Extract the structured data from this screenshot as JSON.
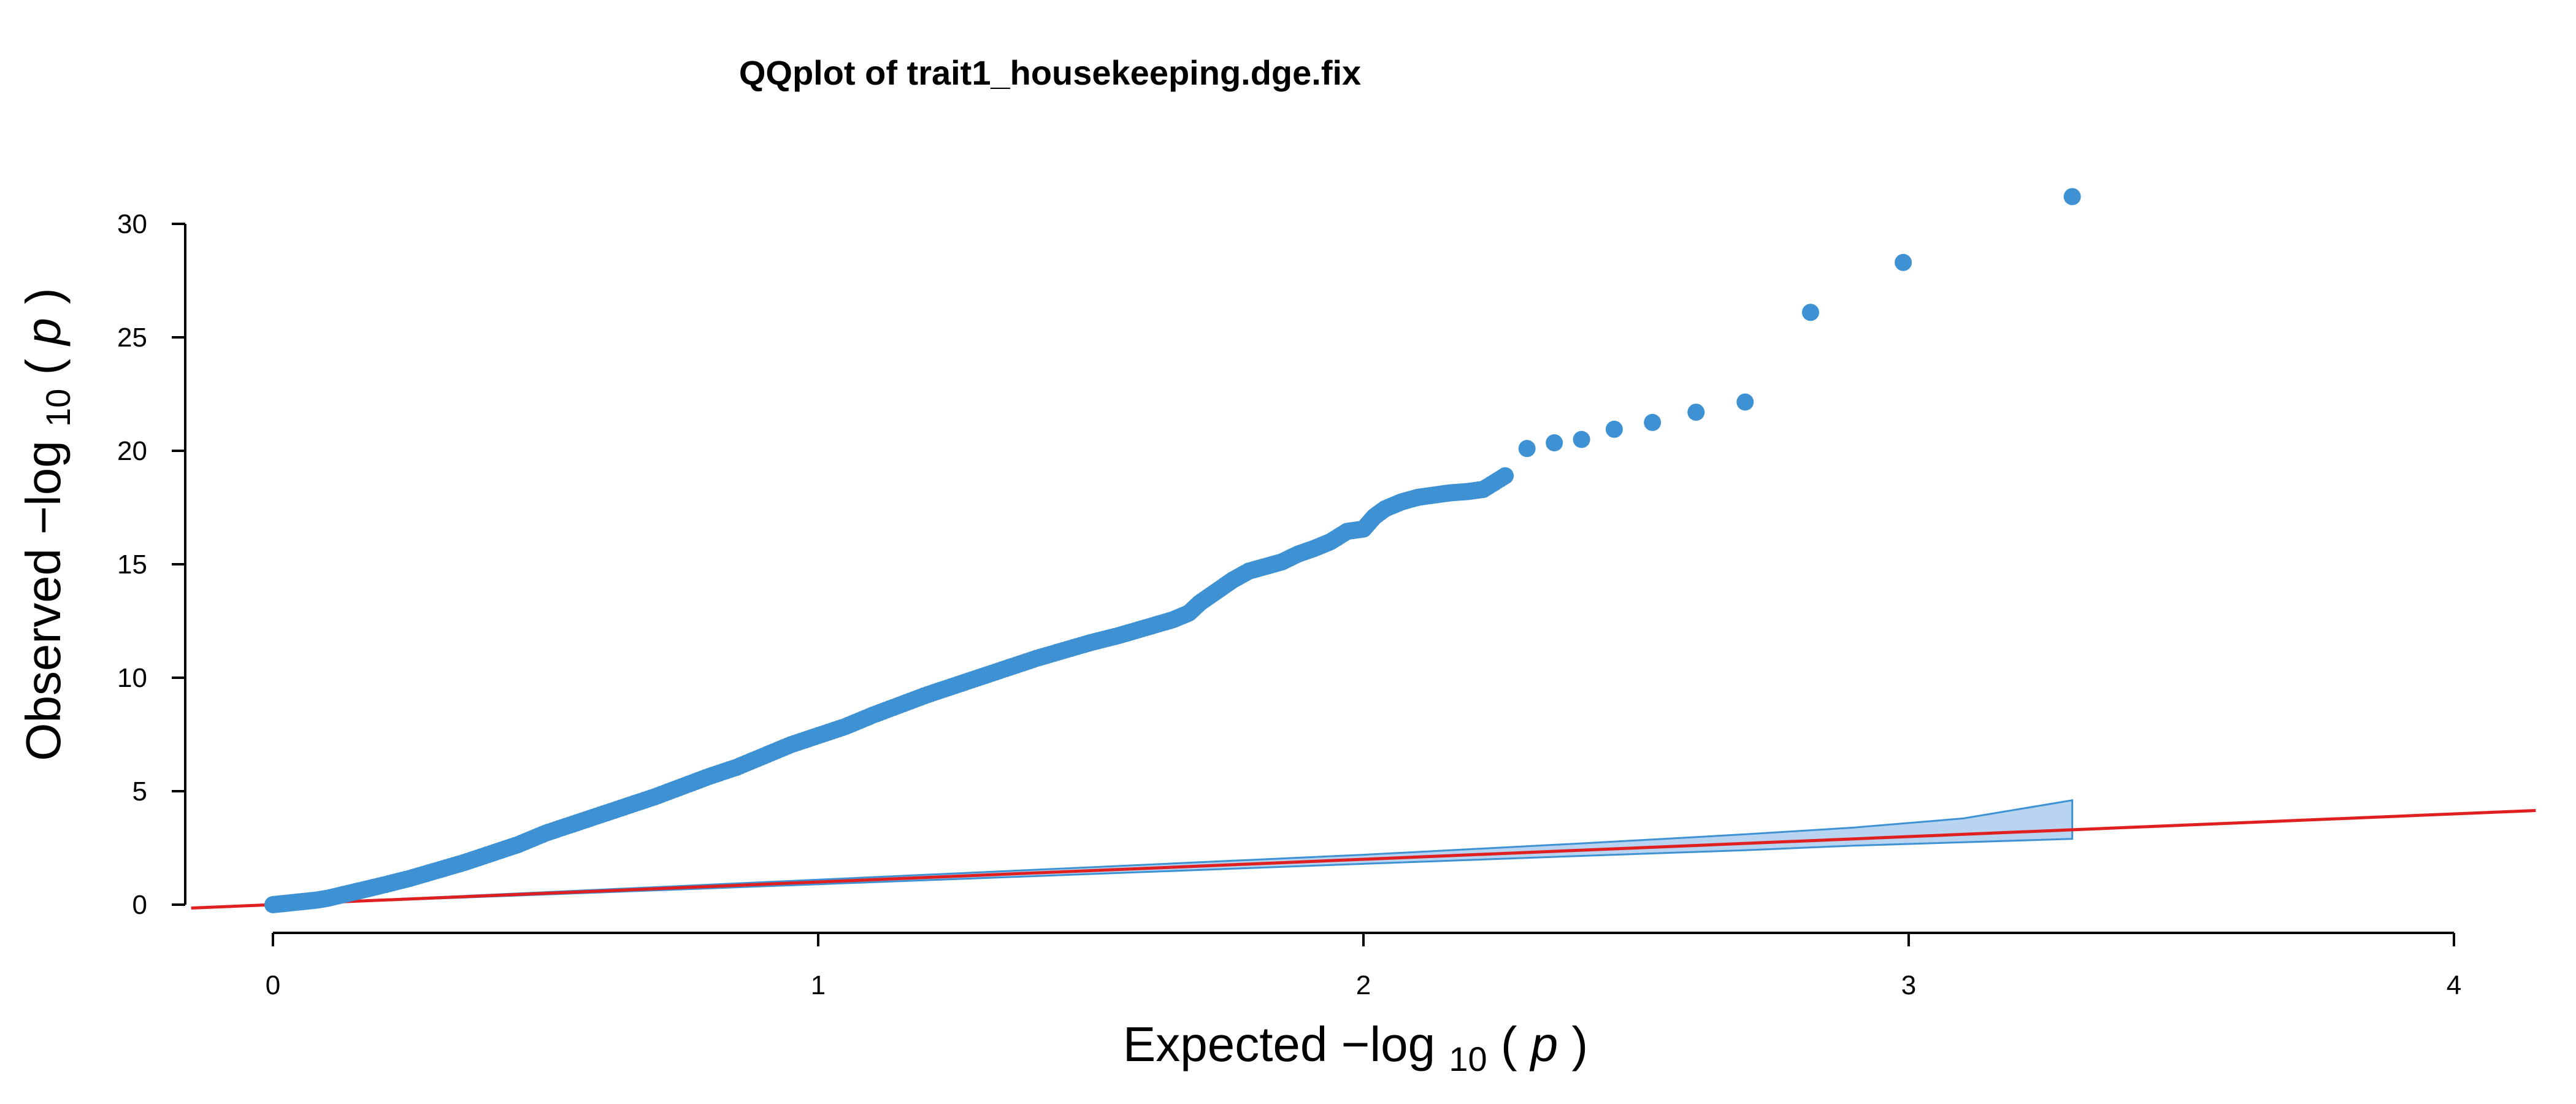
{
  "chart_data": {
    "type": "scatter",
    "title": "QQplot of trait1_housekeeping.dge.fix",
    "xlabel": {
      "prefix": "Expected ",
      "func": "−log",
      "sub": "10",
      "open": "(",
      "var": "p",
      "close": ")"
    },
    "ylabel": {
      "prefix": "Observed ",
      "func": "−log",
      "sub": "10",
      "open": "(",
      "var": "p",
      "close": ")"
    },
    "xlim": [
      0,
      4
    ],
    "ylim": [
      0,
      30
    ],
    "xticks": [
      0,
      1,
      2,
      3,
      4
    ],
    "yticks": [
      0,
      5,
      10,
      15,
      20,
      25,
      30
    ],
    "xtick_labels": [
      "0",
      "1",
      "2",
      "3",
      "4"
    ],
    "ytick_labels": [
      "0",
      "5",
      "10",
      "15",
      "20",
      "25",
      "30"
    ],
    "grid": false,
    "colors": {
      "points": "#3e92d3",
      "band_fill": "#b8d4f0",
      "band_stroke": "#3e92d3",
      "reference_line": "#e02020"
    },
    "series": [
      {
        "values": [
          [
            0.0,
            0.0
          ],
          [
            0.02,
            0.05
          ],
          [
            0.04,
            0.1
          ],
          [
            0.06,
            0.15
          ],
          [
            0.08,
            0.2
          ],
          [
            0.1,
            0.28
          ],
          [
            0.13,
            0.45
          ],
          [
            0.16,
            0.62
          ],
          [
            0.2,
            0.85
          ],
          [
            0.25,
            1.15
          ],
          [
            0.3,
            1.5
          ],
          [
            0.35,
            1.85
          ],
          [
            0.4,
            2.25
          ],
          [
            0.45,
            2.65
          ],
          [
            0.5,
            3.15
          ],
          [
            0.55,
            3.55
          ],
          [
            0.6,
            3.95
          ],
          [
            0.65,
            4.35
          ],
          [
            0.7,
            4.75
          ],
          [
            0.75,
            5.2
          ],
          [
            0.8,
            5.65
          ],
          [
            0.85,
            6.05
          ],
          [
            0.9,
            6.55
          ],
          [
            0.95,
            7.05
          ],
          [
            1.0,
            7.45
          ],
          [
            1.05,
            7.85
          ],
          [
            1.1,
            8.35
          ],
          [
            1.15,
            8.8
          ],
          [
            1.2,
            9.25
          ],
          [
            1.25,
            9.65
          ],
          [
            1.3,
            10.05
          ],
          [
            1.35,
            10.45
          ],
          [
            1.4,
            10.85
          ],
          [
            1.45,
            11.2
          ],
          [
            1.5,
            11.55
          ],
          [
            1.55,
            11.85
          ],
          [
            1.6,
            12.2
          ],
          [
            1.65,
            12.55
          ],
          [
            1.68,
            12.85
          ],
          [
            1.7,
            13.3
          ],
          [
            1.73,
            13.8
          ],
          [
            1.76,
            14.3
          ],
          [
            1.79,
            14.7
          ],
          [
            1.82,
            14.9
          ],
          [
            1.85,
            15.1
          ],
          [
            1.88,
            15.45
          ],
          [
            1.91,
            15.7
          ],
          [
            1.94,
            16.0
          ],
          [
            1.97,
            16.45
          ],
          [
            2.0,
            16.55
          ],
          [
            2.02,
            17.1
          ],
          [
            2.04,
            17.45
          ],
          [
            2.07,
            17.75
          ],
          [
            2.1,
            17.95
          ],
          [
            2.13,
            18.05
          ],
          [
            2.16,
            18.15
          ],
          [
            2.19,
            18.2
          ],
          [
            2.22,
            18.3
          ],
          [
            2.26,
            18.9
          ],
          [
            2.3,
            20.1
          ],
          [
            2.35,
            20.35
          ],
          [
            2.4,
            20.5
          ],
          [
            2.46,
            20.95
          ],
          [
            2.53,
            21.25
          ],
          [
            2.61,
            21.7
          ],
          [
            2.7,
            22.15
          ],
          [
            2.82,
            26.1
          ],
          [
            2.99,
            28.3
          ],
          [
            3.3,
            31.2
          ]
        ]
      }
    ],
    "reference_line": {
      "x": [
        -0.15,
        4.15
      ],
      "y": [
        -0.15,
        4.15
      ]
    },
    "confidence_band": {
      "x": [
        0.0,
        0.5,
        1.0,
        1.5,
        2.0,
        2.4,
        2.7,
        2.9,
        3.1,
        3.3
      ],
      "upper": [
        0.0,
        0.55,
        1.1,
        1.65,
        2.2,
        2.7,
        3.1,
        3.4,
        3.8,
        4.6
      ],
      "lower": [
        0.0,
        0.45,
        0.9,
        1.35,
        1.8,
        2.15,
        2.4,
        2.6,
        2.75,
        2.9
      ]
    }
  }
}
